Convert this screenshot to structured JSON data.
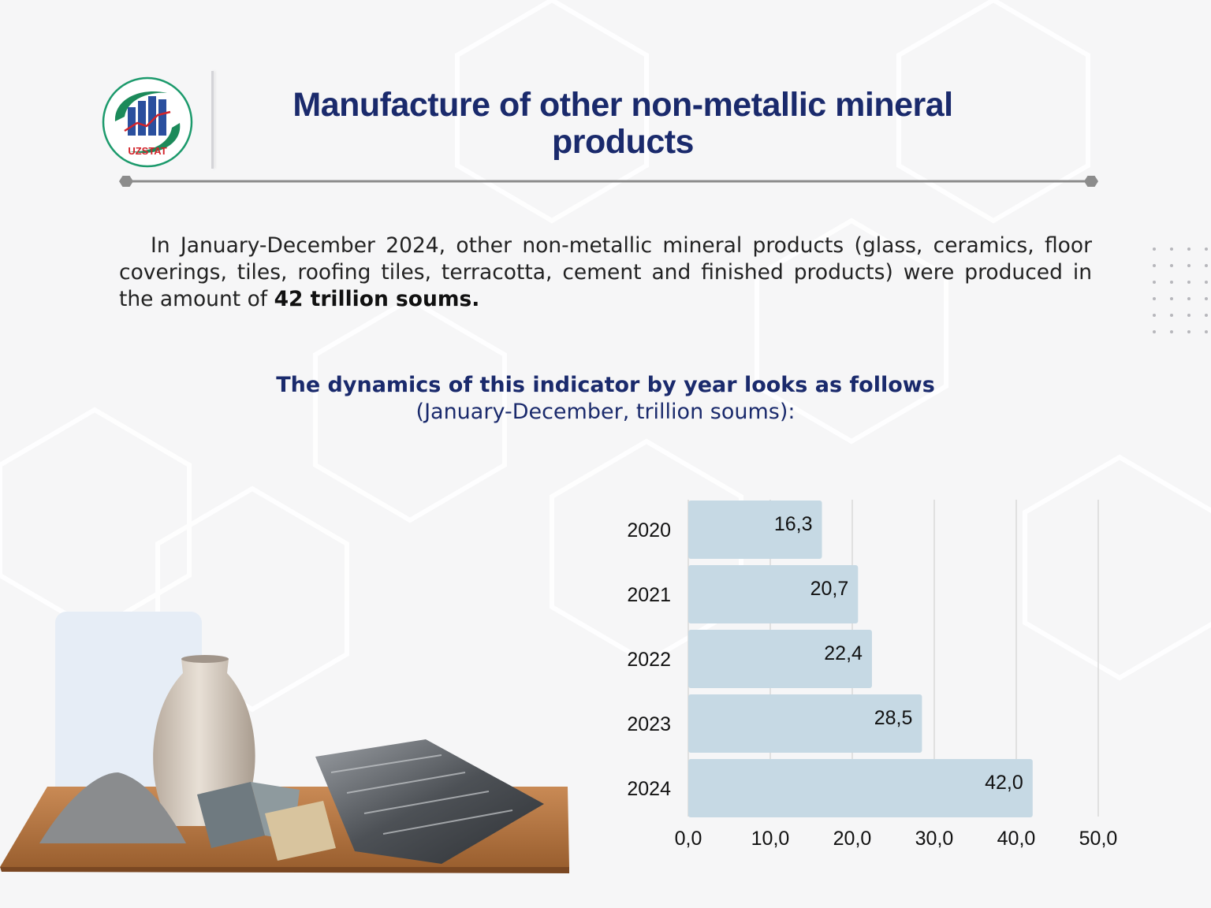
{
  "header": {
    "logo_text": "UZSTAT",
    "title": "Manufacture of other non-metallic mineral products"
  },
  "intro": {
    "text": "In January-December 2024, other non-metallic mineral products (glass, ceramics, floor coverings, tiles, roofing tiles, terracotta, cement and finished products) were produced in the amount of ",
    "highlight": "42 trillion soums."
  },
  "subheading": {
    "title": "The dynamics of this indicator by year looks as follows",
    "note": "(January-December, trillion soums):"
  },
  "colors": {
    "title": "#1a2a6c",
    "bar": "#c6d9e4",
    "grid": "#d9d9d9"
  },
  "chart_data": {
    "type": "bar",
    "orientation": "horizontal",
    "categories": [
      "2020",
      "2021",
      "2022",
      "2023",
      "2024"
    ],
    "values": [
      16.3,
      20.7,
      22.4,
      28.5,
      42.0
    ],
    "value_labels": [
      "16,3",
      "20,7",
      "22,4",
      "28,5",
      "42,0"
    ],
    "xlim": [
      0,
      50
    ],
    "xticks": [
      0,
      10,
      20,
      30,
      40,
      50
    ],
    "xtick_labels": [
      "0,0",
      "10,0",
      "20,0",
      "30,0",
      "40,0",
      "50,0"
    ],
    "grid": true,
    "title": "",
    "xlabel": "",
    "ylabel": ""
  }
}
